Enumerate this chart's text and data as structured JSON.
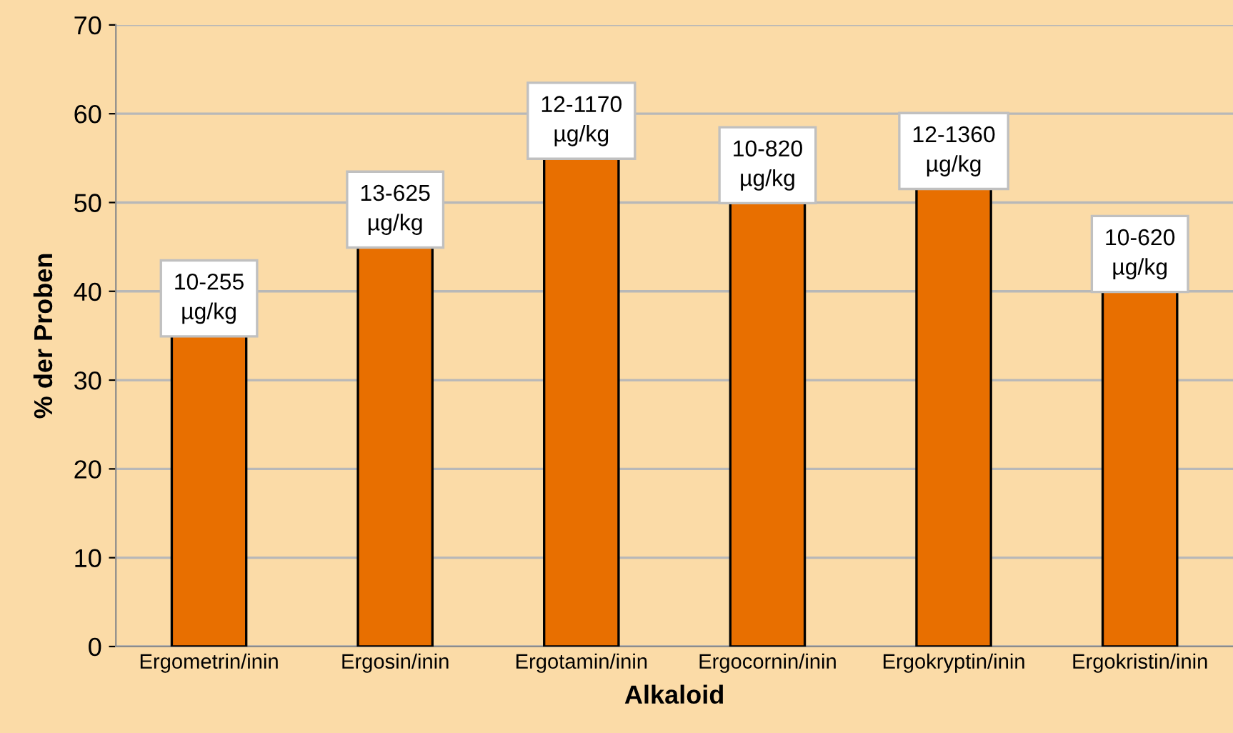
{
  "chart_data": {
    "type": "bar",
    "xlabel": "Alkaloid",
    "ylabel": "% der Proben",
    "categories": [
      "Ergometrin/inin",
      "Ergosin/inin",
      "Ergotamin/inin",
      "Ergocornin/inin",
      "Ergokryptin/inin",
      "Ergokristin/inin"
    ],
    "values": [
      35,
      45,
      55,
      50,
      51.6,
      40
    ],
    "color": "#e86f00",
    "ylim": [
      0,
      70
    ],
    "yticks": [
      0,
      10,
      20,
      30,
      40,
      50,
      60,
      70
    ],
    "grid": "y",
    "annotations": [
      {
        "text": "10-255\nµg/kg",
        "x": "Ergometrin/inin",
        "y": 35
      },
      {
        "text": "13-625\nµg/kg",
        "x": "Ergosin/inin",
        "y": 45
      },
      {
        "text": "12-1170\nµg/kg",
        "x": "Ergotamin/inin",
        "y": 55
      },
      {
        "text": "10-820\nµg/kg",
        "x": "Ergocornin/inin",
        "y": 50
      },
      {
        "text": "12-1360\nµg/kg",
        "x": "Ergokryptin/inin",
        "y": 51.6
      },
      {
        "text": "10-620\nµg/kg",
        "x": "Ergokristin/inin",
        "y": 40
      }
    ]
  }
}
